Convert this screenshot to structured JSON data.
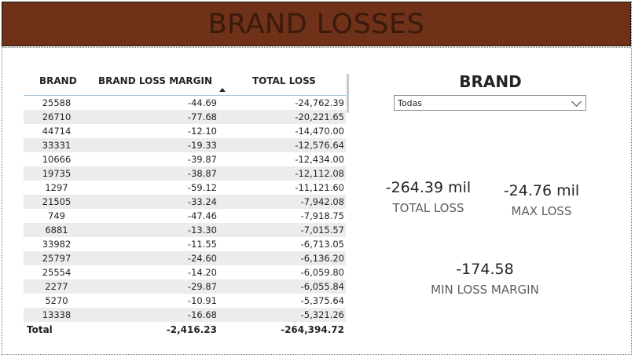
{
  "header": {
    "title": "BRAND LOSSES"
  },
  "table": {
    "columns": [
      "BRAND",
      "BRAND LOSS MARGIN",
      "TOTAL LOSS"
    ],
    "rows": [
      [
        "25588",
        "-44.69",
        "-24,762.39"
      ],
      [
        "26710",
        "-77.68",
        "-20,221.65"
      ],
      [
        "44714",
        "-12.10",
        "-14,470.00"
      ],
      [
        "33331",
        "-19.33",
        "-12,576.64"
      ],
      [
        "10666",
        "-39.87",
        "-12,434.00"
      ],
      [
        "19735",
        "-38.87",
        "-12,112.08"
      ],
      [
        "1297",
        "-59.12",
        "-11,121.60"
      ],
      [
        "21505",
        "-33.24",
        "-7,942.08"
      ],
      [
        "749",
        "-47.46",
        "-7,918.75"
      ],
      [
        "6881",
        "-13.30",
        "-7,015.57"
      ],
      [
        "33982",
        "-11.55",
        "-6,713.05"
      ],
      [
        "25797",
        "-24.60",
        "-6,136.20"
      ],
      [
        "25554",
        "-14.20",
        "-6,059.80"
      ],
      [
        "2277",
        "-29.87",
        "-6,055.84"
      ],
      [
        "5270",
        "-10.91",
        "-5,375.64"
      ],
      [
        "13338",
        "-16.68",
        "-5,321.26"
      ]
    ],
    "total": {
      "label": "Total",
      "margin": "-2,416.23",
      "loss": "-264,394.72"
    }
  },
  "slicer": {
    "title": "BRAND",
    "selected": "Todas"
  },
  "cards": {
    "total_loss": {
      "value": "-264.39 mil",
      "label": "TOTAL LOSS"
    },
    "max_loss": {
      "value": "-24.76 mil",
      "label": "MAX LOSS"
    },
    "min_loss_margin": {
      "value": "-174.58",
      "label": "MIN LOSS MARGIN"
    }
  },
  "colors": {
    "header_bg": "#6f3118",
    "header_text": "#3a1a0c",
    "row_alt": "#ececec"
  }
}
